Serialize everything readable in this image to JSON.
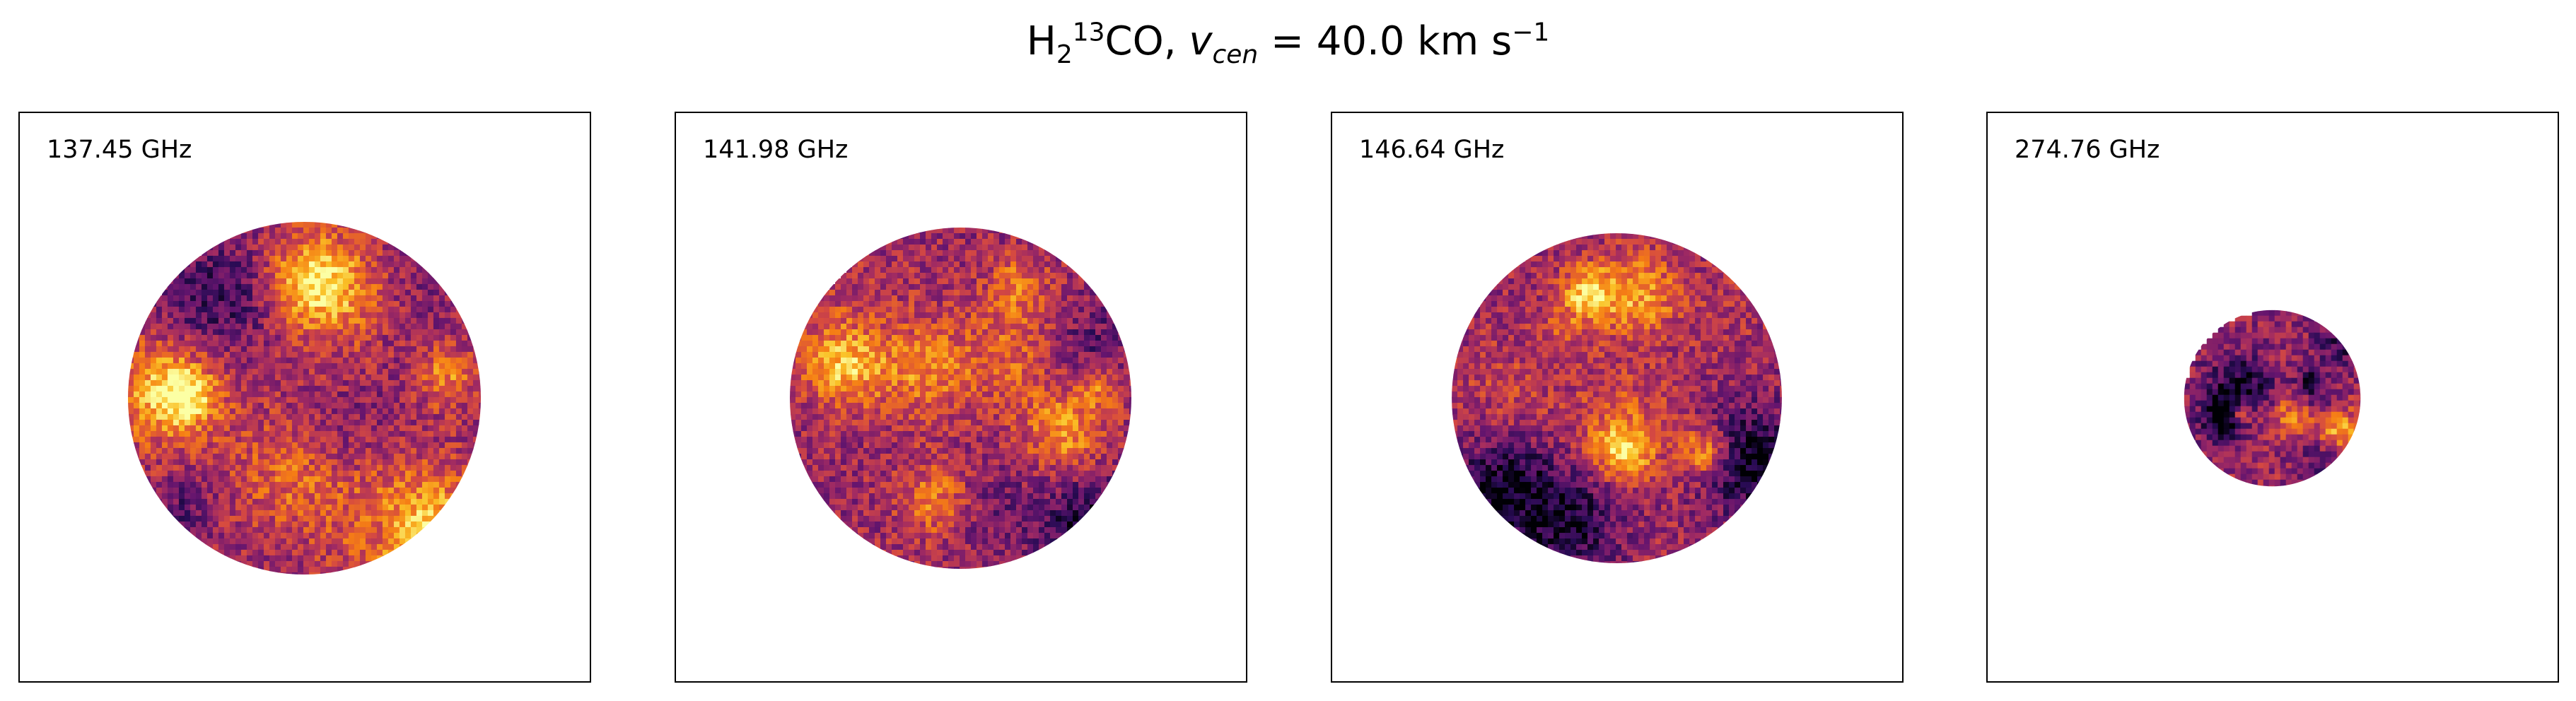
{
  "title": {
    "molecule_main": "H",
    "molecule_sub": "2",
    "molecule_sup": "13",
    "molecule_rest": "CO, ",
    "v_symbol": "v",
    "v_sub": "cen",
    "equals": " =  40.0 km s",
    "unit_sup": "−1"
  },
  "chart_data": {
    "type": "heatmap",
    "colormap": "inferno",
    "panels": [
      {
        "label": "137.45 GHz",
        "freq_ghz": 137.45,
        "beam_fraction": 0.62,
        "seed": 11
      },
      {
        "label": "141.98 GHz",
        "freq_ghz": 141.98,
        "beam_fraction": 0.6,
        "seed": 23
      },
      {
        "label": "146.64 GHz",
        "freq_ghz": 146.64,
        "beam_fraction": 0.58,
        "seed": 37
      },
      {
        "label": "274.76 GHz",
        "freq_ghz": 274.76,
        "beam_fraction": 0.31,
        "seed": 53
      }
    ],
    "colors": {
      "frame": "#000000",
      "background": "#ffffff"
    }
  }
}
